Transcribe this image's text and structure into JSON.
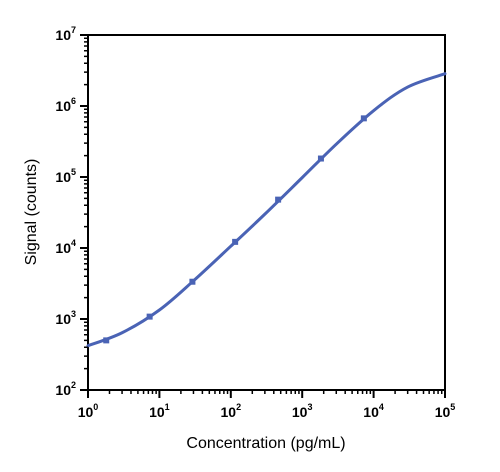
{
  "chart_data": {
    "type": "scatter",
    "title": "",
    "xlabel": "Concentration (pg/mL)",
    "ylabel": "Signal (counts)",
    "x_scale": "log",
    "y_scale": "log",
    "xlim": [
      1,
      100000
    ],
    "ylim": [
      100,
      10000000
    ],
    "grid": false,
    "x_ticks": [
      {
        "value": 1,
        "base": "10",
        "exp": "0"
      },
      {
        "value": 10,
        "base": "10",
        "exp": "1"
      },
      {
        "value": 100,
        "base": "10",
        "exp": "2"
      },
      {
        "value": 1000,
        "base": "10",
        "exp": "3"
      },
      {
        "value": 10000,
        "base": "10",
        "exp": "4"
      },
      {
        "value": 100000,
        "base": "10",
        "exp": "5"
      }
    ],
    "y_ticks": [
      {
        "value": 100,
        "base": "10",
        "exp": "2"
      },
      {
        "value": 1000,
        "base": "10",
        "exp": "3"
      },
      {
        "value": 10000,
        "base": "10",
        "exp": "4"
      },
      {
        "value": 100000,
        "base": "10",
        "exp": "5"
      },
      {
        "value": 1000000,
        "base": "10",
        "exp": "6"
      },
      {
        "value": 10000000,
        "base": "10",
        "exp": "7"
      }
    ],
    "series": [
      {
        "points": [
          {
            "x": 1.8,
            "y": 500
          },
          {
            "x": 7.3,
            "y": 1080
          },
          {
            "x": 29,
            "y": 3350
          },
          {
            "x": 115,
            "y": 12200
          },
          {
            "x": 460,
            "y": 48000
          },
          {
            "x": 1830,
            "y": 182000
          },
          {
            "x": 7300,
            "y": 670000
          }
        ],
        "fit_curve": [
          {
            "x": 1,
            "y": 420
          },
          {
            "x": 3,
            "y": 640
          },
          {
            "x": 10,
            "y": 1340
          },
          {
            "x": 30,
            "y": 3450
          },
          {
            "x": 100,
            "y": 10600
          },
          {
            "x": 300,
            "y": 30000
          },
          {
            "x": 1000,
            "y": 98000
          },
          {
            "x": 3000,
            "y": 290000
          },
          {
            "x": 10000,
            "y": 860000
          },
          {
            "x": 30000,
            "y": 1850000
          },
          {
            "x": 100000,
            "y": 2850000
          }
        ]
      }
    ],
    "colors": {
      "series": "#4a63b5",
      "axis": "#000000"
    }
  }
}
